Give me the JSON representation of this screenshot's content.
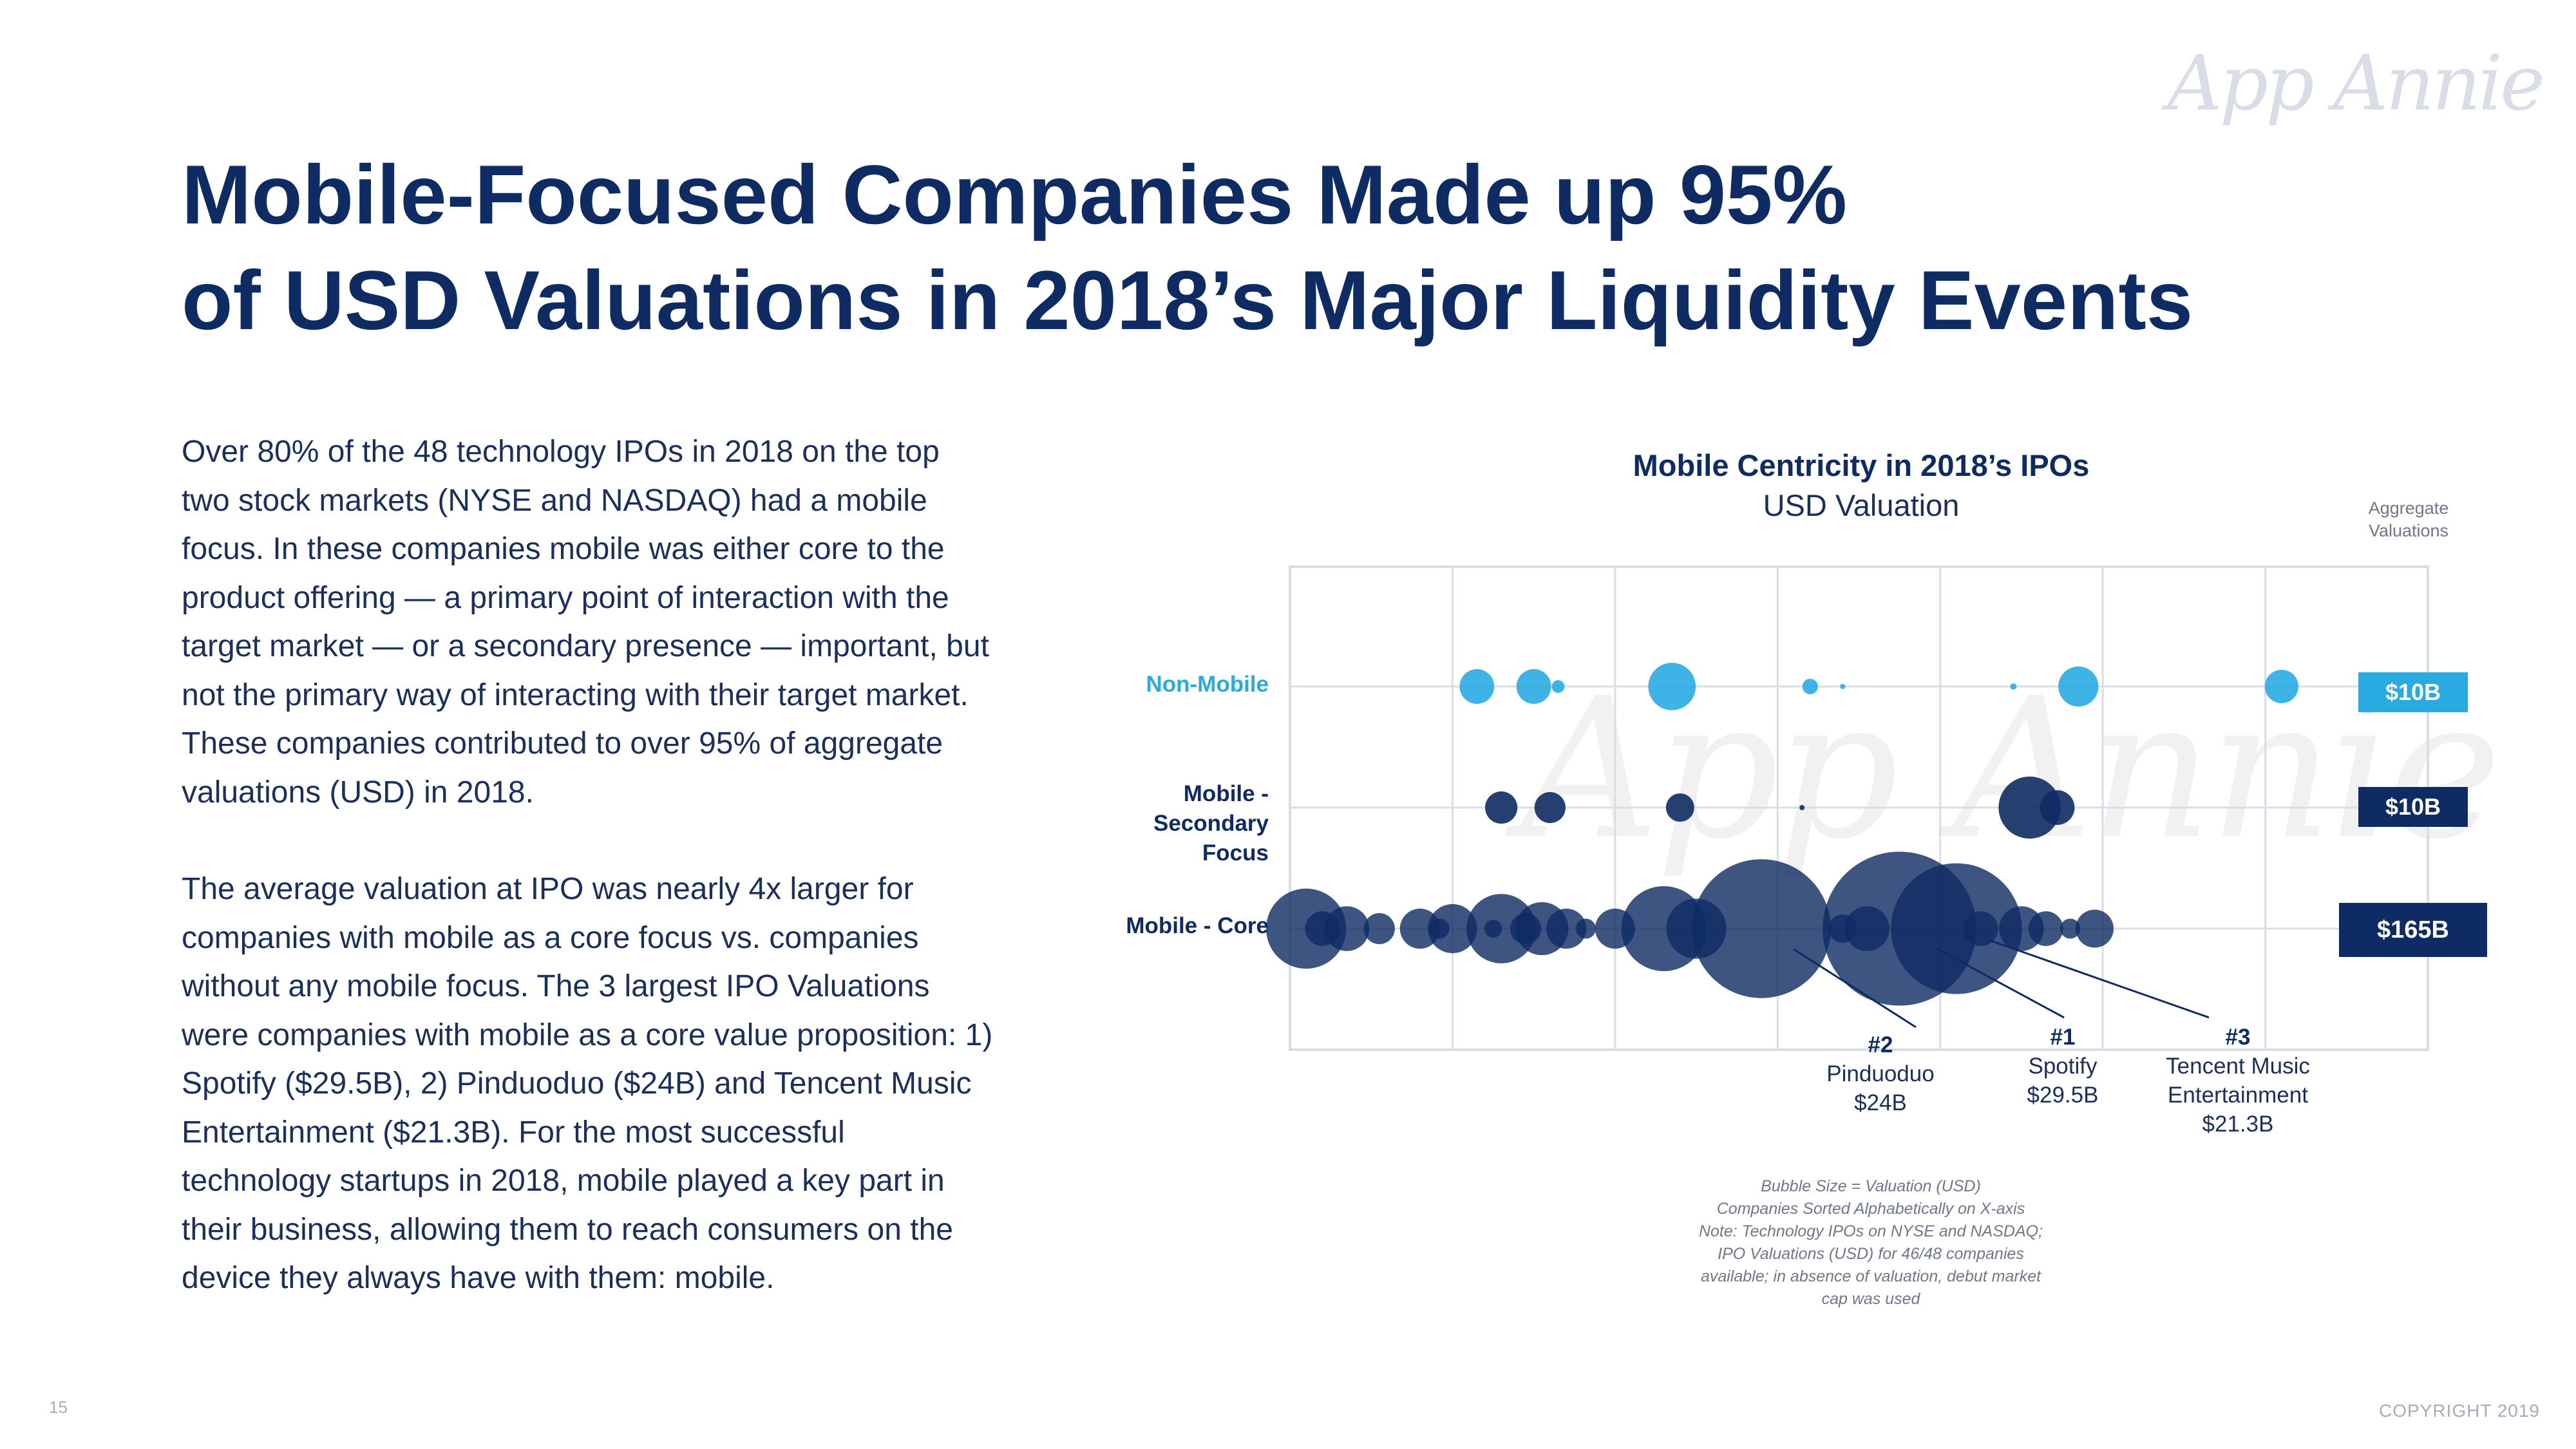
{
  "brand": {
    "logo_text": "App Annie",
    "watermark_text": "App Annie"
  },
  "header": {
    "title_line1": "Mobile-Focused Companies Made up 95%",
    "title_line2": "of USD Valuations in 2018’s Major Liquidity Events"
  },
  "body": {
    "paragraph1": "Over 80% of the 48 technology IPOs in 2018 on the top two stock markets (NYSE and NASDAQ) had a mobile focus. In these companies mobile was either core to the product offering — a primary point of interaction with the target market — or a secondary presence — important, but not the primary way of interacting with their target market. These companies contributed to over 95% of aggregate valuations (USD) in 2018.",
    "paragraph2": "The average valuation at IPO was nearly 4x larger for companies with mobile as a core focus vs. companies without any mobile focus. The 3 largest IPO Valuations were companies with mobile as a core value proposition: 1) Spotify ($29.5B), 2) Pinduoduo ($24B) and Tencent Music Entertainment ($21.3B). For the most successful technology startups in 2018, mobile played a key part in their business, allowing them to reach consumers on the device they always have with them: mobile."
  },
  "footer": {
    "page_number": "15",
    "copyright": "COPYRIGHT 2019"
  },
  "colors": {
    "non_mobile": "#29abe2",
    "mobile_secondary": "#0e2b63",
    "mobile_core": "#0e2b63",
    "grid": "#d9dde6"
  },
  "chart_data": {
    "type": "scatter",
    "title": "Mobile Centricity in 2018’s IPOs",
    "subtitle": "USD Valuation",
    "aggregate_header": [
      "Aggregate",
      "Valuations"
    ],
    "x_description": "Companies Sorted Alphabetically on X-axis",
    "xlim": [
      0,
      7
    ],
    "grid": true,
    "categories": [
      {
        "key": "non_mobile",
        "label": "Non-Mobile",
        "aggregate": "$10B"
      },
      {
        "key": "mobile_secondary",
        "label": "Mobile - Secondary Focus",
        "aggregate": "$10B"
      },
      {
        "key": "mobile_core",
        "label": "Mobile - Core",
        "aggregate": "$165B"
      }
    ],
    "series": [
      {
        "name": "Non-Mobile",
        "points": [
          {
            "x": 1.15,
            "valuation_b": 1.5
          },
          {
            "x": 1.5,
            "valuation_b": 1.5
          },
          {
            "x": 1.65,
            "valuation_b": 0.2
          },
          {
            "x": 2.35,
            "valuation_b": 2.8
          },
          {
            "x": 3.2,
            "valuation_b": 0.3
          },
          {
            "x": 3.4,
            "valuation_b": 0.03
          },
          {
            "x": 4.45,
            "valuation_b": 0.05
          },
          {
            "x": 4.85,
            "valuation_b": 2.0
          },
          {
            "x": 6.1,
            "valuation_b": 1.4
          }
        ]
      },
      {
        "name": "Mobile - Secondary Focus",
        "points": [
          {
            "x": 1.3,
            "valuation_b": 1.3
          },
          {
            "x": 1.6,
            "valuation_b": 1.2
          },
          {
            "x": 2.4,
            "valuation_b": 1.0
          },
          {
            "x": 3.15,
            "valuation_b": 0.02
          },
          {
            "x": 4.55,
            "valuation_b": 4.8
          },
          {
            "x": 4.72,
            "valuation_b": 1.5
          }
        ]
      },
      {
        "name": "Mobile - Core",
        "points": [
          {
            "x": 0.1,
            "valuation_b": 8.0
          },
          {
            "x": 0.2,
            "valuation_b": 1.5
          },
          {
            "x": 0.35,
            "valuation_b": 2.5
          },
          {
            "x": 0.55,
            "valuation_b": 1.2
          },
          {
            "x": 0.8,
            "valuation_b": 2.0
          },
          {
            "x": 0.92,
            "valuation_b": 0.5
          },
          {
            "x": 1.0,
            "valuation_b": 3.0
          },
          {
            "x": 1.25,
            "valuation_b": 0.4
          },
          {
            "x": 1.3,
            "valuation_b": 6.0
          },
          {
            "x": 1.45,
            "valuation_b": 1.2
          },
          {
            "x": 1.55,
            "valuation_b": 3.5
          },
          {
            "x": 1.7,
            "valuation_b": 2.0
          },
          {
            "x": 1.82,
            "valuation_b": 0.5
          },
          {
            "x": 2.0,
            "valuation_b": 2.0
          },
          {
            "x": 2.3,
            "valuation_b": 9.0
          },
          {
            "x": 2.5,
            "valuation_b": 4.5
          },
          {
            "x": 2.9,
            "valuation_b": 24.0,
            "rank": "#2",
            "label": "Pinduoduo",
            "value_label": "$24B"
          },
          {
            "x": 3.4,
            "valuation_b": 1.0
          },
          {
            "x": 3.55,
            "valuation_b": 2.5
          },
          {
            "x": 3.75,
            "valuation_b": 29.5,
            "rank": "#1",
            "label": "Spotify",
            "value_label": "$29.5B"
          },
          {
            "x": 4.1,
            "valuation_b": 21.3,
            "rank": "#3",
            "label": "Tencent Music Entertainment",
            "value_label": "$21.3B"
          },
          {
            "x": 4.25,
            "valuation_b": 1.5
          },
          {
            "x": 4.5,
            "valuation_b": 2.5
          },
          {
            "x": 4.65,
            "valuation_b": 1.5
          },
          {
            "x": 4.8,
            "valuation_b": 0.5
          },
          {
            "x": 4.95,
            "valuation_b": 1.8
          }
        ]
      }
    ],
    "callouts": [
      {
        "rank": "#2",
        "name": "Pinduoduo",
        "value": "$24B"
      },
      {
        "rank": "#1",
        "name": "Spotify",
        "value": "$29.5B"
      },
      {
        "rank": "#3",
        "name": "Tencent Music Entertainment",
        "value": "$21.3B"
      }
    ],
    "notes": [
      "Bubble Size = Valuation (USD)",
      "Companies Sorted Alphabetically on X-axis",
      "Note: Technology IPOs on NYSE and NASDAQ;",
      "IPO Valuations (USD) for 46/48 companies",
      "available; in absence of valuation, debut market",
      "cap was used"
    ]
  }
}
